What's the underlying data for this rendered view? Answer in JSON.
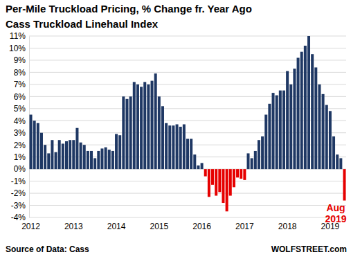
{
  "chart_data": {
    "type": "bar",
    "title": "Per-Mile Truckload Pricing, % Change fr. Year Ago",
    "subtitle": "Cass Truckload Linehaul Index",
    "source": "Source of Data: Cass",
    "credit": "WOLFSTREET.com",
    "annotations": [
      "Aug",
      "2019"
    ],
    "categories": [
      "2012",
      null,
      null,
      null,
      null,
      null,
      null,
      null,
      null,
      null,
      null,
      null,
      "2013",
      null,
      null,
      null,
      null,
      null,
      null,
      null,
      null,
      null,
      null,
      null,
      "2014",
      null,
      null,
      null,
      null,
      null,
      null,
      null,
      null,
      null,
      null,
      null,
      "2015",
      null,
      null,
      null,
      null,
      null,
      null,
      null,
      null,
      null,
      null,
      null,
      "2016",
      null,
      null,
      null,
      null,
      null,
      null,
      null,
      null,
      null,
      null,
      null,
      "2017",
      null,
      null,
      null,
      null,
      null,
      null,
      null,
      null,
      null,
      null,
      null,
      "2018",
      null,
      null,
      null,
      null,
      null,
      null,
      null,
      null,
      null,
      null,
      null,
      "2019",
      null,
      null,
      null,
      null
    ],
    "values": [
      4.5,
      4.0,
      3.8,
      3.0,
      2.0,
      1.3,
      2.4,
      1.4,
      2.4,
      2.1,
      2.3,
      2.4,
      2.4,
      3.4,
      2.2,
      2.0,
      1.5,
      1.5,
      0.9,
      1.5,
      1.7,
      1.8,
      1.6,
      1.5,
      2.9,
      2.8,
      6.0,
      5.8,
      6.0,
      7.2,
      7.0,
      6.8,
      7.2,
      7.0,
      7.3,
      7.9,
      6.0,
      5.2,
      3.8,
      3.6,
      3.6,
      3.7,
      3.5,
      3.7,
      2.5,
      2.5,
      1.2,
      0.3,
      0.5,
      -0.6,
      -2.3,
      -1.3,
      -2.2,
      -1.9,
      -2.8,
      -3.5,
      -2.2,
      -1.5,
      -0.7,
      -0.8,
      -0.9,
      1.3,
      0.9,
      1.5,
      2.4,
      2.7,
      4.5,
      5.4,
      6.3,
      6.1,
      6.5,
      6.5,
      8.1,
      7.0,
      8.3,
      9.2,
      9.7,
      10.2,
      11.0,
      9.5,
      8.4,
      7.0,
      6.2,
      5.3,
      4.8,
      2.7,
      1.2,
      0.9,
      -2.6
    ],
    "colors": [
      "#1f3864",
      "#1f3864",
      "#1f3864",
      "#1f3864",
      "#1f3864",
      "#1f3864",
      "#1f3864",
      "#1f3864",
      "#1f3864",
      "#1f3864",
      "#1f3864",
      "#1f3864",
      "#1f3864",
      "#1f3864",
      "#1f3864",
      "#1f3864",
      "#1f3864",
      "#1f3864",
      "#1f3864",
      "#1f3864",
      "#1f3864",
      "#1f3864",
      "#1f3864",
      "#1f3864",
      "#1f3864",
      "#1f3864",
      "#1f3864",
      "#1f3864",
      "#1f3864",
      "#1f3864",
      "#1f3864",
      "#1f3864",
      "#1f3864",
      "#1f3864",
      "#1f3864",
      "#1f3864",
      "#1f3864",
      "#1f3864",
      "#1f3864",
      "#1f3864",
      "#1f3864",
      "#1f3864",
      "#1f3864",
      "#1f3864",
      "#1f3864",
      "#1f3864",
      "#1f3864",
      "#1f3864",
      "#1f3864",
      "#e60000",
      "#e60000",
      "#e60000",
      "#e60000",
      "#e60000",
      "#e60000",
      "#e60000",
      "#e60000",
      "#e60000",
      "#e60000",
      "#e60000",
      "#e60000",
      "#1f3864",
      "#1f3864",
      "#1f3864",
      "#1f3864",
      "#1f3864",
      "#1f3864",
      "#1f3864",
      "#1f3864",
      "#1f3864",
      "#1f3864",
      "#1f3864",
      "#1f3864",
      "#1f3864",
      "#1f3864",
      "#1f3864",
      "#1f3864",
      "#1f3864",
      "#1f3864",
      "#1f3864",
      "#1f3864",
      "#1f3864",
      "#1f3864",
      "#1f3864",
      "#1f3864",
      "#1f3864",
      "#1f3864",
      "#1f3864",
      "#e60000"
    ],
    "ylim": [
      -4,
      11
    ],
    "yticks": [
      {
        "value": -4,
        "label": "-4%"
      },
      {
        "value": -3,
        "label": "-3%"
      },
      {
        "value": -2,
        "label": "-2%"
      },
      {
        "value": -1,
        "label": "-1%"
      },
      {
        "value": 0,
        "label": "0%"
      },
      {
        "value": 1,
        "label": "1%"
      },
      {
        "value": 2,
        "label": "2%"
      },
      {
        "value": 3,
        "label": "3%"
      },
      {
        "value": 4,
        "label": "4%"
      },
      {
        "value": 5,
        "label": "5%"
      },
      {
        "value": 6,
        "label": "6%"
      },
      {
        "value": 7,
        "label": "7%"
      },
      {
        "value": 8,
        "label": "8%"
      },
      {
        "value": 9,
        "label": "9%"
      },
      {
        "value": 10,
        "label": "10%"
      },
      {
        "value": 11,
        "label": "11%"
      }
    ],
    "grid": true
  }
}
